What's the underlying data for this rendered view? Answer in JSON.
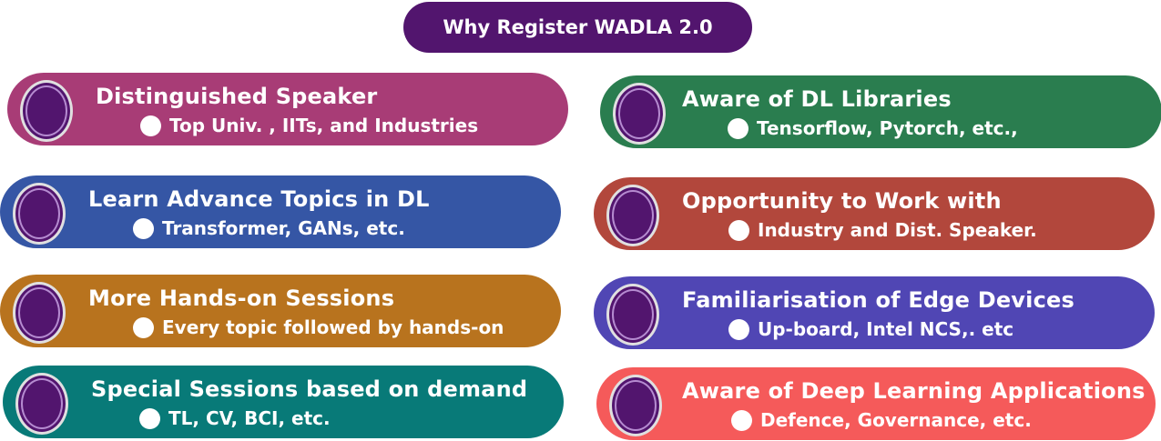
{
  "title": "Why Register WADLA 2.0",
  "colors": {
    "title_bg": "#52156e",
    "ring": "#52156e"
  },
  "left": [
    {
      "heading": "Distinguished Speaker",
      "sub": "Top Univ. , IITs, and Industries",
      "color": "#a83c76"
    },
    {
      "heading": "Learn Advance Topics in DL",
      "sub": "Transformer, GANs, etc.",
      "color": "#3556a5"
    },
    {
      "heading": "More Hands-on Sessions",
      "sub": "Every topic followed by hands-on",
      "color": "#b8731e"
    },
    {
      "heading": "Special Sessions based on demand",
      "sub": "TL,  CV, BCI, etc.",
      "color": "#087a78"
    }
  ],
  "right": [
    {
      "heading": "Aware of DL Libraries",
      "sub": "Tensorflow, Pytorch, etc.,",
      "color": "#2a7d4f"
    },
    {
      "heading": "Opportunity to Work with",
      "sub": "Industry and Dist. Speaker.",
      "color": "#b2473c"
    },
    {
      "heading": "Familiarisation of Edge Devices",
      "sub": "Up-board, Intel NCS,. etc",
      "color": "#5046b4"
    },
    {
      "heading": "Aware of  Deep Learning Applications",
      "sub": "Defence, Governance, etc.",
      "color": "#f55a5a"
    }
  ]
}
